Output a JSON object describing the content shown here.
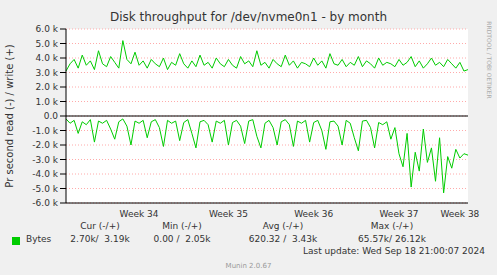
{
  "chart_data": {
    "type": "line",
    "title": "Disk throughput for /dev/nvme0n1 - by month",
    "y_label": "Pr second read (-) / write (+)",
    "watermark": "RRDTOOL / TOBI OETIKER",
    "last_update": "Last update: Wed Sep 18 21:00:07 2024",
    "footer": "Munin 2.0.67",
    "categories": [
      null,
      null,
      null,
      null,
      null,
      null,
      null,
      null,
      null,
      null,
      null,
      null,
      null,
      null,
      null,
      null,
      null,
      null,
      "Week 34",
      null,
      null,
      null,
      null,
      null,
      null,
      null,
      null,
      null,
      null,
      null,
      null,
      null,
      null,
      null,
      null,
      null,
      null,
      null,
      null,
      null,
      "Week 35",
      null,
      null,
      null,
      null,
      null,
      null,
      null,
      null,
      null,
      null,
      null,
      null,
      null,
      null,
      null,
      null,
      null,
      null,
      null,
      null,
      "Week 36",
      null,
      null,
      null,
      null,
      null,
      null,
      null,
      null,
      null,
      null,
      null,
      null,
      null,
      null,
      null,
      null,
      null,
      null,
      null,
      null,
      "Week 37",
      null,
      null,
      null,
      null,
      null,
      null,
      null,
      null,
      null,
      null,
      null,
      null,
      null,
      null,
      "Week 38",
      null,
      null
    ],
    "ylim": [
      -6000,
      6000
    ],
    "yticks": [
      {
        "value": -6000,
        "label": "-6.0 k"
      },
      {
        "value": -5000,
        "label": "-5.0 k"
      },
      {
        "value": -4000,
        "label": "-4.0 k"
      },
      {
        "value": -3000,
        "label": "-3.0 k"
      },
      {
        "value": -2000,
        "label": "-2.0 k"
      },
      {
        "value": -1000,
        "label": "-1.0 k"
      },
      {
        "value": 0,
        "label": "0.0"
      },
      {
        "value": 1000,
        "label": "1.0 k"
      },
      {
        "value": 2000,
        "label": "2.0 k"
      },
      {
        "value": 3000,
        "label": "3.0 k"
      },
      {
        "value": 4000,
        "label": "4.0 k"
      },
      {
        "value": 5000,
        "label": "5.0 k"
      },
      {
        "value": 6000,
        "label": "6.0 k"
      }
    ],
    "grid": true,
    "series": [
      {
        "name": "Bytes",
        "color": "#00cc00",
        "write": [
          3100,
          3600,
          3900,
          3300,
          4200,
          3500,
          3800,
          3200,
          4500,
          3600,
          3400,
          4100,
          3700,
          3300,
          5200,
          3900,
          3600,
          4400,
          3500,
          3800,
          3300,
          3900,
          3600,
          3400,
          4000,
          3200,
          3700,
          3500,
          4300,
          3600,
          3300,
          3800,
          3400,
          4200,
          3500,
          3700,
          3300,
          4000,
          3600,
          3400,
          3900,
          3500,
          3300,
          4100,
          3600,
          3800,
          3400,
          4500,
          3500,
          3700,
          3300,
          3900,
          3600,
          3400,
          4200,
          3500,
          3800,
          3300,
          3700,
          3600,
          3400,
          4000,
          3500,
          3800,
          3300,
          4300,
          3600,
          3500,
          3900,
          3400,
          3700,
          3500,
          4100,
          3400,
          3800,
          3600,
          3300,
          4000,
          3500,
          3700,
          3600,
          3400,
          3900,
          3500,
          3700,
          4100,
          3400,
          3800,
          3300,
          3600,
          4000,
          3500,
          3700,
          3400,
          3900,
          3600,
          3300,
          3700,
          3100,
          3200
        ],
        "read": [
          -200,
          -500,
          -300,
          -1200,
          -400,
          -600,
          -250,
          -1800,
          -350,
          -500,
          -300,
          -900,
          -1600,
          -400,
          -200,
          -700,
          -2000,
          -350,
          -500,
          -300,
          -1500,
          -400,
          -250,
          -800,
          -2100,
          -300,
          -500,
          -350,
          -1700,
          -450,
          -250,
          -1200,
          -2200,
          -400,
          -300,
          -600,
          -1800,
          -350,
          -500,
          -300,
          -2000,
          -450,
          -300,
          -700,
          -1900,
          -350,
          -250,
          -1400,
          -2200,
          -500,
          -300,
          -800,
          -2000,
          -400,
          -250,
          -600,
          -2100,
          -350,
          -500,
          -300,
          -1800,
          -450,
          -300,
          -1000,
          -2300,
          -400,
          -350,
          -700,
          -2000,
          -300,
          -500,
          -1500,
          -2400,
          -350,
          -300,
          -800,
          -2200,
          -450,
          -600,
          -400,
          -1600,
          -800,
          -2600,
          -3500,
          -1200,
          -4900,
          -2500,
          -3800,
          -900,
          -3200,
          -2200,
          -4500,
          -1500,
          -5300,
          -2800,
          -3600,
          -2300,
          -2900,
          -2600,
          -2700
        ]
      }
    ],
    "summary": {
      "columns": [
        "Cur (-/+)",
        "Min (-/+)",
        "Avg (-/+)",
        "Max (-/+)"
      ],
      "cells": [
        "2.70k/  3.19k",
        "0.00 /  2.05k",
        "620.32 /  3.43k",
        "65.57k/ 26.12k"
      ]
    }
  }
}
